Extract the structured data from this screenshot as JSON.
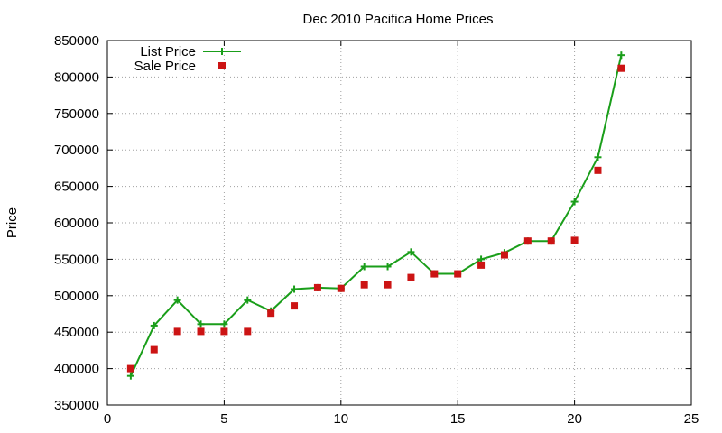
{
  "chart_data": {
    "type": "line",
    "title": "Dec 2010 Pacifica Home Prices",
    "xlabel": "",
    "ylabel": "Price",
    "xlim": [
      0,
      25
    ],
    "ylim": [
      350000,
      850000
    ],
    "xticks": [
      0,
      5,
      10,
      15,
      20,
      25
    ],
    "yticks": [
      350000,
      400000,
      450000,
      500000,
      550000,
      600000,
      650000,
      700000,
      750000,
      800000,
      850000
    ],
    "grid": true,
    "legend": "top-left",
    "series": [
      {
        "name": "List Price",
        "style": "linespoints",
        "marker": "plus",
        "color": "#1a9e1a",
        "x": [
          1,
          2,
          3,
          4,
          5,
          6,
          7,
          8,
          9,
          10,
          11,
          12,
          13,
          14,
          15,
          16,
          17,
          18,
          19,
          20,
          21,
          22
        ],
        "y": [
          390000,
          459000,
          494000,
          461000,
          461000,
          494000,
          479000,
          509000,
          511000,
          510000,
          540000,
          540000,
          560000,
          530000,
          530000,
          550000,
          559000,
          575000,
          575000,
          629000,
          690000,
          830000
        ]
      },
      {
        "name": "Sale Price",
        "style": "points",
        "marker": "square",
        "color": "#cc1414",
        "x": [
          1,
          2,
          3,
          4,
          5,
          6,
          7,
          8,
          9,
          10,
          11,
          12,
          13,
          14,
          15,
          16,
          17,
          18,
          19,
          20,
          21,
          22
        ],
        "y": [
          400000,
          426000,
          451000,
          451000,
          451000,
          451000,
          476000,
          486000,
          511000,
          510000,
          515000,
          515000,
          525000,
          530000,
          530000,
          542000,
          556000,
          575000,
          575000,
          576000,
          672000,
          812000
        ]
      }
    ]
  }
}
